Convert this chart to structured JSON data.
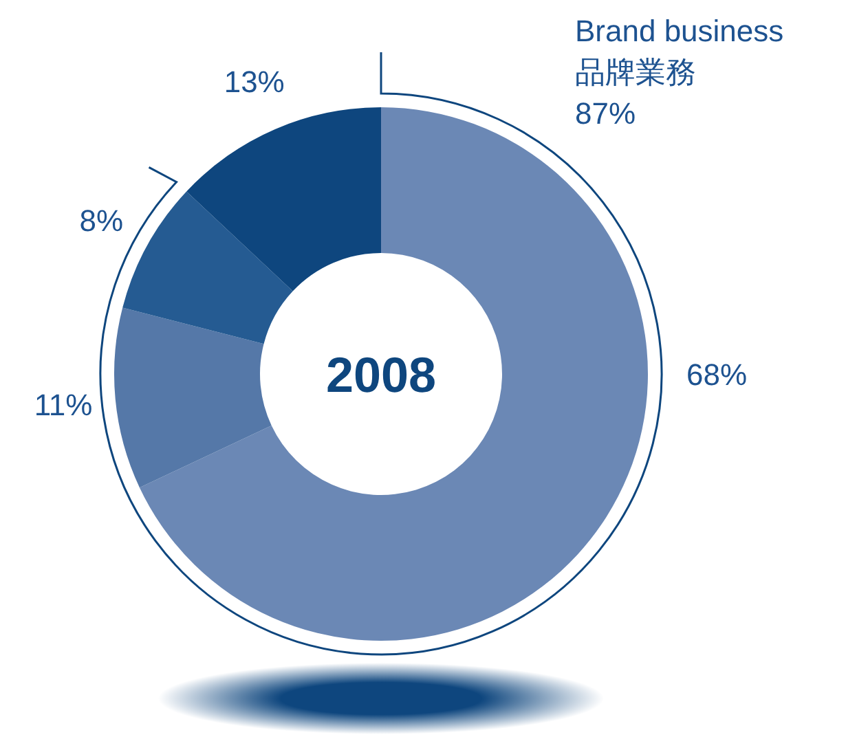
{
  "chart_data": {
    "type": "donut",
    "categories": [
      null,
      null,
      null,
      null
    ],
    "values": [
      68,
      11,
      8,
      13
    ],
    "colors": [
      "#6b88b5",
      "#5578a8",
      "#255b92",
      "#0e467e"
    ],
    "value_labels": [
      "68%",
      "11%",
      "8%",
      "13%"
    ],
    "title": "2008",
    "annotations": [
      "Brand business\n品牌業務\n87%"
    ]
  }
}
